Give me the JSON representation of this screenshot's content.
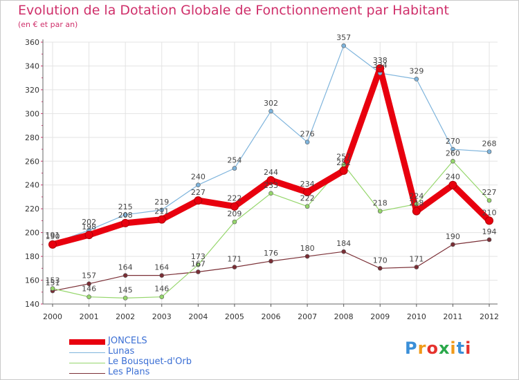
{
  "header": {
    "title": "Evolution de la Dotation Globale de Fonctionnement par Habitant",
    "subtitle": "(en € et par an)"
  },
  "logo": {
    "text": "Proxiti"
  },
  "chart_data": {
    "type": "line",
    "title": "Evolution de la Dotation Globale de Fonctionnement par Habitant",
    "subtitle": "(en € et par an)",
    "xlabel": "",
    "ylabel": "",
    "x": [
      "2000",
      "2001",
      "2002",
      "2003",
      "2004",
      "2005",
      "2006",
      "2007",
      "2008",
      "2009",
      "2010",
      "2011",
      "2012"
    ],
    "ylim": [
      140,
      360
    ],
    "yticks": [
      140,
      160,
      180,
      200,
      220,
      240,
      260,
      280,
      300,
      320,
      340,
      360
    ],
    "grid": true,
    "legend_position": "bottom-left",
    "series": [
      {
        "name": "JONCELS",
        "color": "#e8000e",
        "values": [
          190,
          198,
          208,
          211,
          227,
          222,
          244,
          234,
          252,
          338,
          218,
          240,
          210
        ]
      },
      {
        "name": "Lunas",
        "color": "#7eb4dc",
        "values": [
          191,
          202,
          215,
          219,
          240,
          254,
          302,
          276,
          357,
          334,
          329,
          270,
          268
        ]
      },
      {
        "name": "Le Bousquet-d'Orb",
        "color": "#95d66b",
        "values": [
          153,
          146,
          145,
          146,
          173,
          209,
          233,
          222,
          257,
          218,
          224,
          260,
          227
        ]
      },
      {
        "name": "Les Plans",
        "color": "#7a2e35",
        "values": [
          151,
          157,
          164,
          164,
          167,
          171,
          176,
          180,
          184,
          170,
          171,
          190,
          194
        ]
      }
    ]
  }
}
